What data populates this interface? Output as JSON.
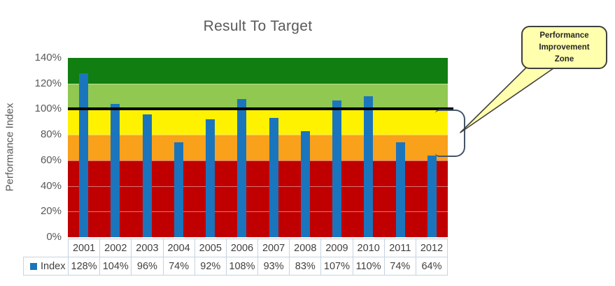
{
  "chart_data": {
    "type": "bar",
    "title": "Result To Target",
    "ylabel": "Performance Index",
    "xlabel": "",
    "categories": [
      "2001",
      "2002",
      "2003",
      "2004",
      "2005",
      "2006",
      "2007",
      "2008",
      "2009",
      "2010",
      "2011",
      "2012"
    ],
    "series": [
      {
        "name": "Index",
        "values": [
          128,
          104,
          96,
          74,
          92,
          108,
          93,
          83,
          107,
          110,
          74,
          64
        ]
      }
    ],
    "value_labels": [
      "128%",
      "104%",
      "96%",
      "74%",
      "92%",
      "108%",
      "93%",
      "83%",
      "107%",
      "110%",
      "74%",
      "64%"
    ],
    "ylim": [
      0,
      140
    ],
    "ytick_labels": [
      "0%",
      "20%",
      "40%",
      "60%",
      "80%",
      "100%",
      "120%",
      "140%"
    ],
    "grid": true,
    "legend_position": "data-table-left",
    "bar_color": "#1B75BC",
    "target_line": {
      "value": 100,
      "color": "#000000"
    },
    "zones": [
      {
        "name": "zone-120-140",
        "from": 120,
        "to": 140,
        "color": "#107E10"
      },
      {
        "name": "zone-100-120",
        "from": 100,
        "to": 120,
        "color": "#90C851"
      },
      {
        "name": "zone-80-100",
        "from": 80,
        "to": 100,
        "color": "#FFF200"
      },
      {
        "name": "zone-60-80",
        "from": 60,
        "to": 80,
        "color": "#F9A11B"
      },
      {
        "name": "zone-0-60",
        "from": 0,
        "to": 60,
        "color": "#C00000"
      }
    ],
    "legend": {
      "label": "Index",
      "marker_color": "#1B75BC"
    }
  },
  "annotation": {
    "callout": {
      "lines": [
        "Performance",
        "Improvement",
        "Zone"
      ],
      "text": "Performance Improvement Zone",
      "fill": "#FFFFAD",
      "border_color": "#3F3F3F"
    },
    "bracket": {
      "covers": "60%-100%",
      "color": "#44546A"
    }
  }
}
